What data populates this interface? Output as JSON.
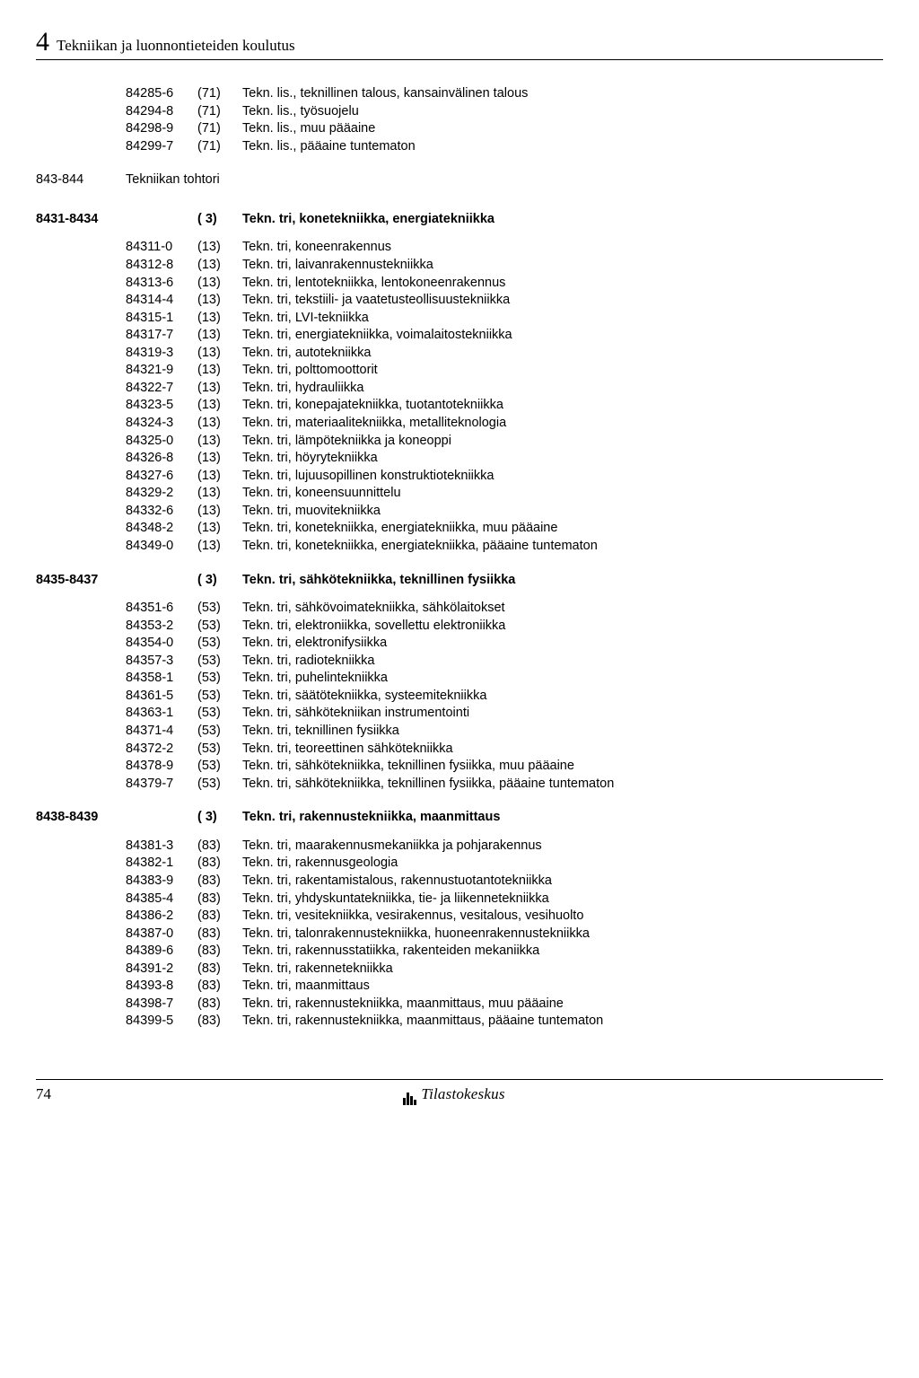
{
  "chapter": {
    "number": "4",
    "title": "Tekniikan ja luonnontieteiden koulutus"
  },
  "top_rows": [
    {
      "code": "84285-6",
      "paren": "(71)",
      "desc": "Tekn. lis., teknillinen talous, kansainvälinen talous"
    },
    {
      "code": "84294-8",
      "paren": "(71)",
      "desc": "Tekn. lis., työsuojelu"
    },
    {
      "code": "84298-9",
      "paren": "(71)",
      "desc": "Tekn. lis., muu pääaine"
    },
    {
      "code": "84299-7",
      "paren": "(71)",
      "desc": "Tekn. lis., pääaine tuntematon"
    }
  ],
  "intermediate": {
    "range": "843-844",
    "label": "Tekniikan tohtori"
  },
  "sections": [
    {
      "range": "8431-8434",
      "paren": "( 3)",
      "title": "Tekn. tri, konetekniikka, energiatekniikka",
      "rows": [
        {
          "code": "84311-0",
          "paren": "(13)",
          "desc": "Tekn. tri, koneenrakennus"
        },
        {
          "code": "84312-8",
          "paren": "(13)",
          "desc": "Tekn. tri, laivanrakennustekniikka"
        },
        {
          "code": "84313-6",
          "paren": "(13)",
          "desc": "Tekn. tri, lentotekniikka, lentokoneenrakennus"
        },
        {
          "code": "84314-4",
          "paren": "(13)",
          "desc": "Tekn. tri, tekstiili- ja vaatetusteollisuustekniikka"
        },
        {
          "code": "84315-1",
          "paren": "(13)",
          "desc": "Tekn. tri, LVI-tekniikka"
        },
        {
          "code": "84317-7",
          "paren": "(13)",
          "desc": "Tekn. tri, energiatekniikka, voimalaitostekniikka"
        },
        {
          "code": "84319-3",
          "paren": "(13)",
          "desc": "Tekn. tri, autotekniikka"
        },
        {
          "code": "84321-9",
          "paren": "(13)",
          "desc": "Tekn. tri, polttomoottorit"
        },
        {
          "code": "84322-7",
          "paren": "(13)",
          "desc": "Tekn. tri, hydrauliikka"
        },
        {
          "code": "84323-5",
          "paren": "(13)",
          "desc": "Tekn. tri, konepajatekniikka, tuotantotekniikka"
        },
        {
          "code": "84324-3",
          "paren": "(13)",
          "desc": "Tekn. tri, materiaalitekniikka, metalliteknologia"
        },
        {
          "code": "84325-0",
          "paren": "(13)",
          "desc": "Tekn. tri, lämpötekniikka ja koneoppi"
        },
        {
          "code": "84326-8",
          "paren": "(13)",
          "desc": "Tekn. tri, höyrytekniikka"
        },
        {
          "code": "84327-6",
          "paren": "(13)",
          "desc": "Tekn. tri, lujuusopillinen konstruktiotekniikka"
        },
        {
          "code": "84329-2",
          "paren": "(13)",
          "desc": "Tekn. tri, koneensuunnittelu"
        },
        {
          "code": "84332-6",
          "paren": "(13)",
          "desc": "Tekn. tri, muovitekniikka"
        },
        {
          "code": "84348-2",
          "paren": "(13)",
          "desc": "Tekn. tri, konetekniikka, energiatekniikka, muu pääaine"
        },
        {
          "code": "84349-0",
          "paren": "(13)",
          "desc": "Tekn. tri, konetekniikka, energiatekniikka, pääaine tuntematon"
        }
      ]
    },
    {
      "range": "8435-8437",
      "paren": "( 3)",
      "title": "Tekn. tri, sähkötekniikka, teknillinen fysiikka",
      "rows": [
        {
          "code": "84351-6",
          "paren": "(53)",
          "desc": "Tekn. tri, sähkövoimatekniikka, sähkölaitokset"
        },
        {
          "code": "84353-2",
          "paren": "(53)",
          "desc": "Tekn. tri, elektroniikka, sovellettu elektroniikka"
        },
        {
          "code": "84354-0",
          "paren": "(53)",
          "desc": "Tekn. tri, elektronifysiikka"
        },
        {
          "code": "84357-3",
          "paren": "(53)",
          "desc": "Tekn. tri, radiotekniikka"
        },
        {
          "code": "84358-1",
          "paren": "(53)",
          "desc": "Tekn. tri, puhelintekniikka"
        },
        {
          "code": "84361-5",
          "paren": "(53)",
          "desc": "Tekn. tri, säätötekniikka, systeemitekniikka"
        },
        {
          "code": "84363-1",
          "paren": "(53)",
          "desc": "Tekn. tri, sähkötekniikan instrumentointi"
        },
        {
          "code": "84371-4",
          "paren": "(53)",
          "desc": "Tekn. tri, teknillinen fysiikka"
        },
        {
          "code": "84372-2",
          "paren": "(53)",
          "desc": "Tekn. tri, teoreettinen sähkötekniikka"
        },
        {
          "code": "84378-9",
          "paren": "(53)",
          "desc": "Tekn. tri, sähkötekniikka, teknillinen fysiikka, muu pääaine"
        },
        {
          "code": "84379-7",
          "paren": "(53)",
          "desc": "Tekn. tri, sähkötekniikka, teknillinen fysiikka, pääaine tuntematon"
        }
      ]
    },
    {
      "range": "8438-8439",
      "paren": "( 3)",
      "title": "Tekn. tri, rakennustekniikka, maanmittaus",
      "rows": [
        {
          "code": "84381-3",
          "paren": "(83)",
          "desc": "Tekn. tri, maarakennusmekaniikka ja pohjarakennus"
        },
        {
          "code": "84382-1",
          "paren": "(83)",
          "desc": "Tekn. tri, rakennusgeologia"
        },
        {
          "code": "84383-9",
          "paren": "(83)",
          "desc": "Tekn. tri, rakentamistalous, rakennustuotantotekniikka"
        },
        {
          "code": "84385-4",
          "paren": "(83)",
          "desc": "Tekn. tri, yhdyskuntatekniikka, tie- ja liikennetekniikka"
        },
        {
          "code": "84386-2",
          "paren": "(83)",
          "desc": "Tekn. tri, vesitekniikka, vesirakennus, vesitalous, vesihuolto"
        },
        {
          "code": "84387-0",
          "paren": "(83)",
          "desc": "Tekn. tri, talonrakennustekniikka, huoneenrakennustekniikka"
        },
        {
          "code": "84389-6",
          "paren": "(83)",
          "desc": "Tekn. tri, rakennusstatiikka, rakenteiden mekaniikka"
        },
        {
          "code": "84391-2",
          "paren": "(83)",
          "desc": "Tekn. tri, rakennetekniikka"
        },
        {
          "code": "84393-8",
          "paren": "(83)",
          "desc": "Tekn. tri, maanmittaus"
        },
        {
          "code": "84398-7",
          "paren": "(83)",
          "desc": "Tekn. tri, rakennustekniikka, maanmittaus, muu pääaine"
        },
        {
          "code": "84399-5",
          "paren": "(83)",
          "desc": "Tekn. tri, rakennustekniikka, maanmittaus, pääaine tuntematon"
        }
      ]
    }
  ],
  "footer": {
    "page": "74",
    "org": "Tilastokeskus"
  }
}
